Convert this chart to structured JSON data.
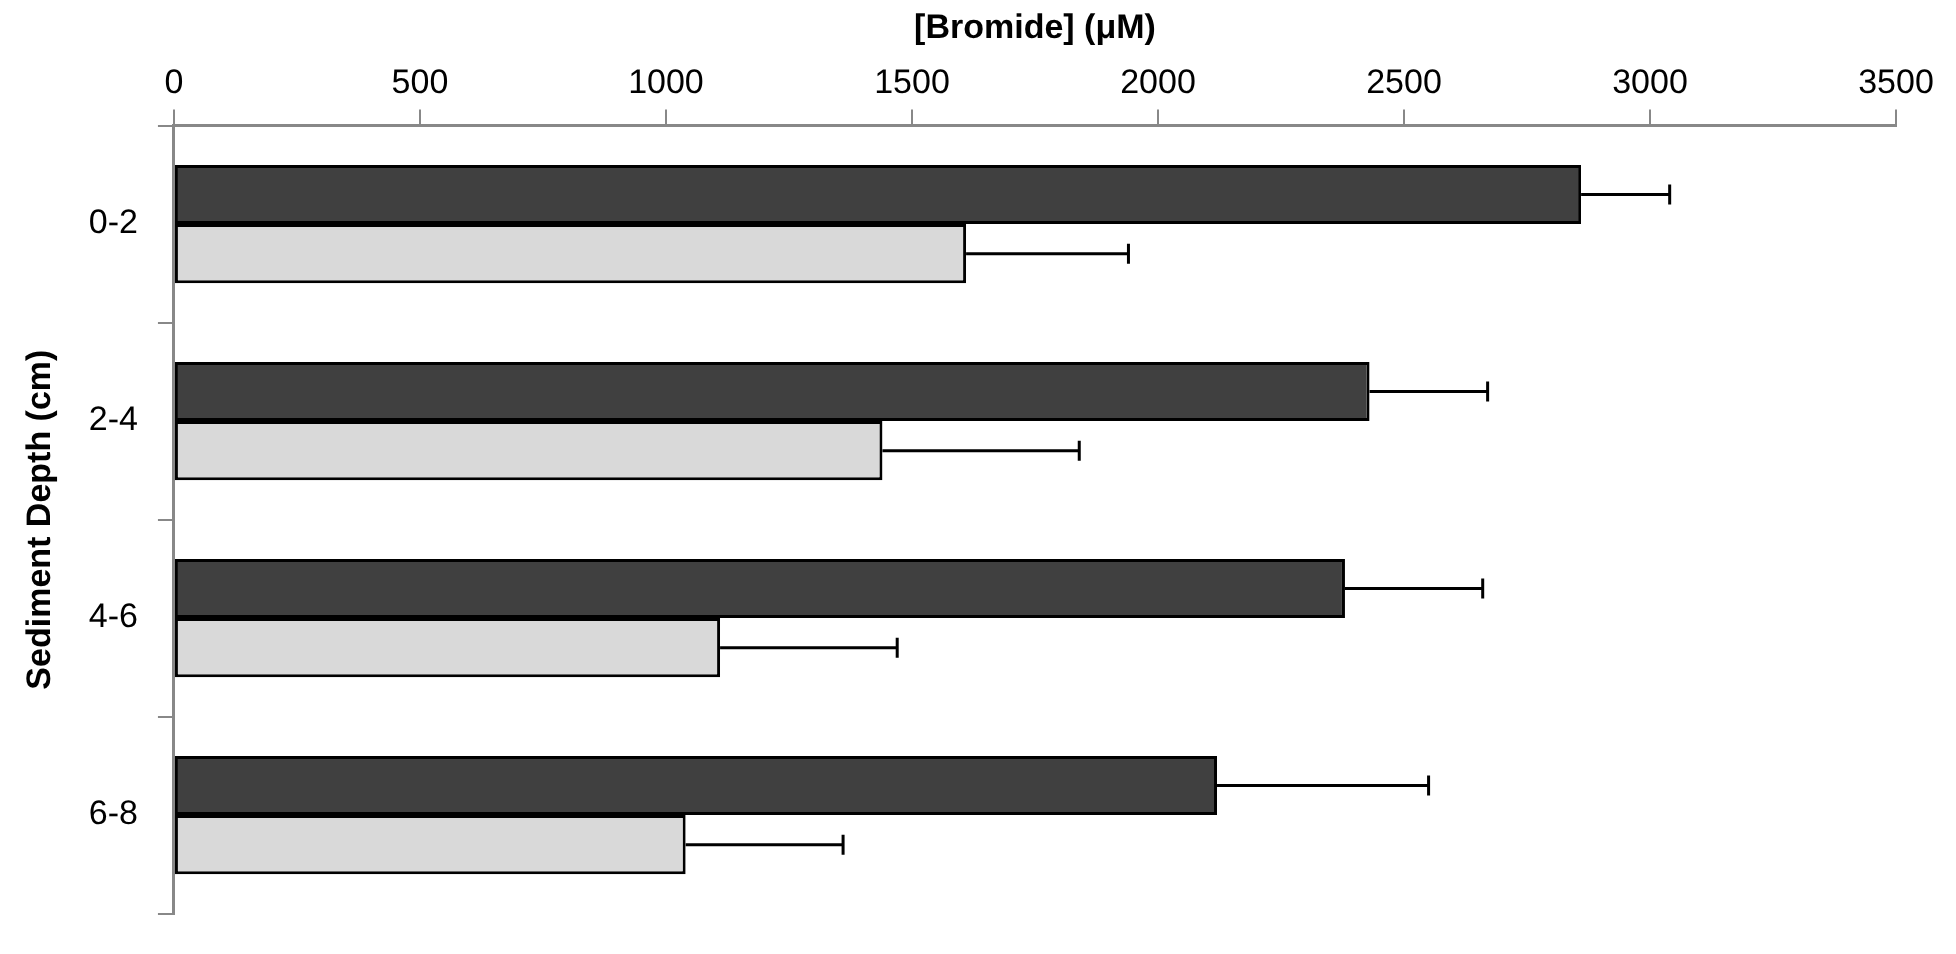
{
  "chart_data": {
    "type": "bar",
    "orientation": "horizontal",
    "xlabel": "[Bromide] (μM)",
    "ylabel": "Sediment Depth (cm)",
    "categories": [
      "0-2",
      "2-4",
      "4-6",
      "6-8"
    ],
    "series": [
      {
        "color": "#404040",
        "values": [
          2860,
          2430,
          2380,
          2120
        ],
        "errors": [
          [
            2860,
            3040
          ],
          [
            2430,
            2670
          ],
          [
            2380,
            2660
          ],
          [
            2120,
            2550
          ]
        ]
      },
      {
        "color": "#d9d9d9",
        "values": [
          1610,
          1440,
          1110,
          1040
        ],
        "errors": [
          [
            1610,
            1940
          ],
          [
            1440,
            1840
          ],
          [
            1110,
            1470
          ],
          [
            1040,
            1360
          ]
        ]
      }
    ],
    "xlim": [
      0,
      3500
    ],
    "xticks": [
      0,
      500,
      1000,
      1500,
      2000,
      2500,
      3000,
      3500
    ],
    "grid": false,
    "legend": false
  }
}
